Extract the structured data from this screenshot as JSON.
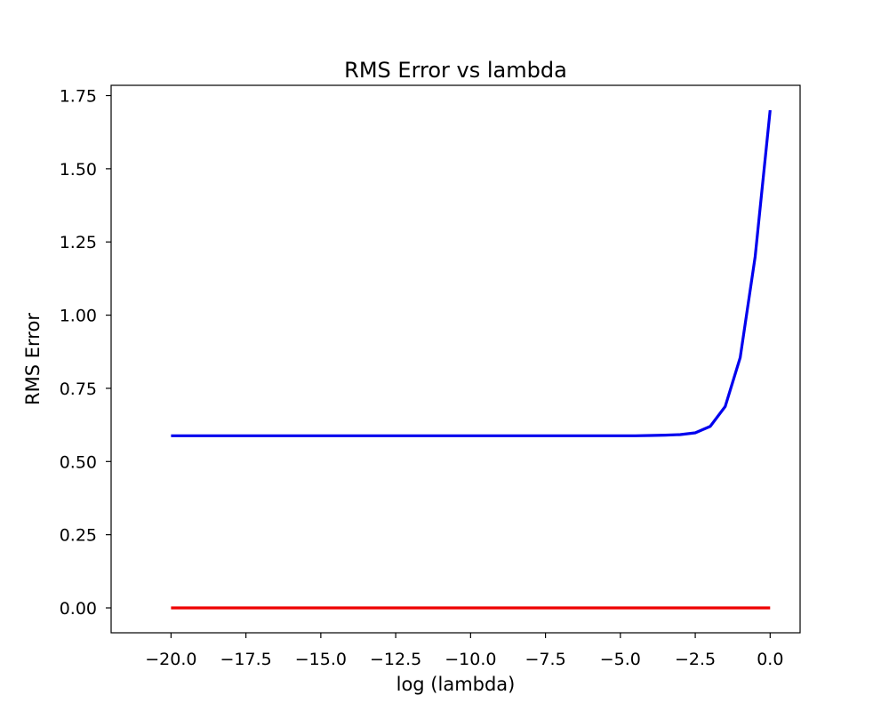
{
  "chart_data": {
    "type": "line",
    "title": "RMS Error vs lambda",
    "xlabel": "log (lambda)",
    "ylabel": "RMS Error",
    "xlim": [
      -22,
      1
    ],
    "ylim": [
      -0.085,
      1.785
    ],
    "x_ticks": [
      -20.0,
      -17.5,
      -15.0,
      -12.5,
      -10.0,
      -7.5,
      -5.0,
      -2.5,
      0.0
    ],
    "x_tick_labels": [
      "−20.0",
      "−17.5",
      "−15.0",
      "−12.5",
      "−10.0",
      "−7.5",
      "−5.0",
      "−2.5",
      "0.0"
    ],
    "y_ticks": [
      0.0,
      0.25,
      0.5,
      0.75,
      1.0,
      1.25,
      1.5,
      1.75
    ],
    "y_tick_labels": [
      "0.00",
      "0.25",
      "0.50",
      "0.75",
      "1.00",
      "1.25",
      "1.50",
      "1.75"
    ],
    "grid": false,
    "series": [
      {
        "color": "#0000ee",
        "x": [
          -20,
          -19.5,
          -19,
          -18.5,
          -18,
          -17.5,
          -17,
          -16.5,
          -16,
          -15.5,
          -15,
          -14.5,
          -14,
          -13.5,
          -13,
          -12.5,
          -12,
          -11.5,
          -11,
          -10.5,
          -10,
          -9.5,
          -9,
          -8.5,
          -8,
          -7.5,
          -7,
          -6.5,
          -6,
          -5.5,
          -5,
          -4.5,
          -4,
          -3.5,
          -3,
          -2.5,
          -2,
          -1.5,
          -1,
          -0.5,
          0
        ],
        "values": [
          0.588,
          0.588,
          0.588,
          0.588,
          0.588,
          0.588,
          0.588,
          0.588,
          0.588,
          0.588,
          0.588,
          0.588,
          0.588,
          0.588,
          0.588,
          0.588,
          0.588,
          0.588,
          0.588,
          0.588,
          0.588,
          0.588,
          0.588,
          0.588,
          0.588,
          0.588,
          0.588,
          0.588,
          0.588,
          0.588,
          0.588,
          0.588,
          0.589,
          0.59,
          0.592,
          0.598,
          0.62,
          0.688,
          0.855,
          1.2,
          1.7
        ]
      },
      {
        "color": "#ee0000",
        "x": [
          -20,
          -19.5,
          -19,
          -18.5,
          -18,
          -17.5,
          -17,
          -16.5,
          -16,
          -15.5,
          -15,
          -14.5,
          -14,
          -13.5,
          -13,
          -12.5,
          -12,
          -11.5,
          -11,
          -10.5,
          -10,
          -9.5,
          -9,
          -8.5,
          -8,
          -7.5,
          -7,
          -6.5,
          -6,
          -5.5,
          -5,
          -4.5,
          -4,
          -3.5,
          -3,
          -2.5,
          -2,
          -1.5,
          -1,
          -0.5,
          0
        ],
        "values": [
          0,
          0,
          0,
          0,
          0,
          0,
          0,
          0,
          0,
          0,
          0,
          0,
          0,
          0,
          0,
          0,
          0,
          0,
          0,
          0,
          0,
          0,
          0,
          0,
          0,
          0,
          0,
          0,
          0,
          0,
          0,
          0,
          0,
          0,
          0,
          0,
          0,
          0,
          0,
          0,
          0
        ]
      }
    ]
  }
}
